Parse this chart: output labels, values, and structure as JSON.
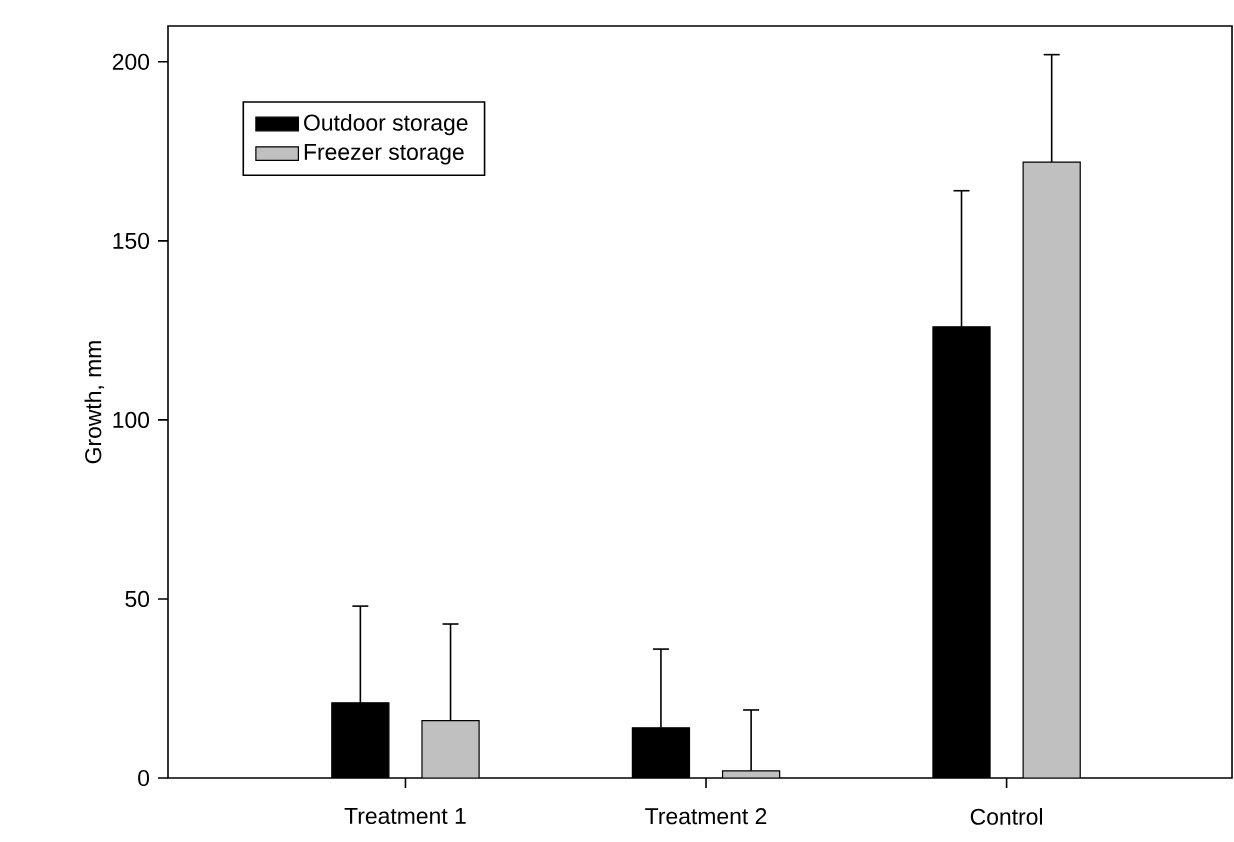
{
  "chart_data": {
    "type": "bar",
    "ylabel": "Growth, mm",
    "categories": [
      "Treatment 1",
      "Treatment 2",
      "Control"
    ],
    "series": [
      {
        "name": "Outdoor storage",
        "color": "#000000",
        "values": [
          21,
          14,
          126
        ],
        "errors": [
          [
            21,
            48
          ],
          [
            14,
            36
          ],
          [
            126,
            164
          ]
        ]
      },
      {
        "name": "Freezer storage",
        "color": "#c0c0c0",
        "values": [
          16,
          2,
          172
        ],
        "errors": [
          [
            16,
            43
          ],
          [
            2,
            19
          ],
          [
            172,
            202
          ]
        ]
      }
    ],
    "ylim": [
      0,
      210
    ],
    "yticks": [
      0,
      50,
      100,
      150,
      200
    ],
    "grid": false,
    "legend": "top left"
  }
}
